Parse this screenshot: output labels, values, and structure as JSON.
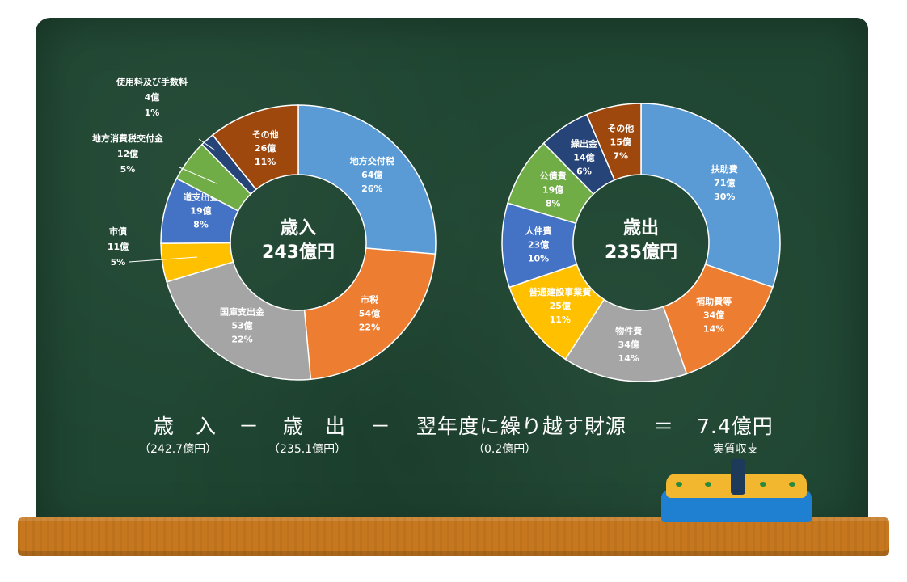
{
  "chart_data": [
    {
      "type": "pie",
      "center_label": [
        "歳入",
        "243億円"
      ],
      "slices": [
        {
          "name": "地方交付税",
          "value": 64,
          "value_label": "64億",
          "percent": "26%",
          "color": "#5b9bd5"
        },
        {
          "name": "市税",
          "value": 54,
          "value_label": "54億",
          "percent": "22%",
          "color": "#ed7d31"
        },
        {
          "name": "国庫支出金",
          "value": 53,
          "value_label": "53億",
          "percent": "22%",
          "color": "#a5a5a5"
        },
        {
          "name": "市債",
          "value": 11,
          "value_label": "11億",
          "percent": "5%",
          "color": "#ffc000"
        },
        {
          "name": "道支出金",
          "value": 19,
          "value_label": "19億",
          "percent": "8%",
          "color": "#4472c4"
        },
        {
          "name": "地方消費税交付金",
          "value": 12,
          "value_label": "12億",
          "percent": "5%",
          "color": "#70ad47"
        },
        {
          "name": "使用料及び手数料",
          "value": 4,
          "value_label": "4億",
          "percent": "1%",
          "color": "#264478"
        },
        {
          "name": "その他",
          "value": 26,
          "value_label": "26億",
          "percent": "11%",
          "color": "#9e480e"
        }
      ]
    },
    {
      "type": "pie",
      "center_label": [
        "歳出",
        "235億円"
      ],
      "slices": [
        {
          "name": "扶助費",
          "value": 71,
          "value_label": "71億",
          "percent": "30%",
          "color": "#5b9bd5"
        },
        {
          "name": "補助費等",
          "value": 34,
          "value_label": "34億",
          "percent": "14%",
          "color": "#ed7d31"
        },
        {
          "name": "物件費",
          "value": 34,
          "value_label": "34億",
          "percent": "14%",
          "color": "#a5a5a5"
        },
        {
          "name": "普通建設事業費",
          "value": 25,
          "value_label": "25億",
          "percent": "11%",
          "color": "#ffc000"
        },
        {
          "name": "人件費",
          "value": 23,
          "value_label": "23億",
          "percent": "10%",
          "color": "#4472c4"
        },
        {
          "name": "公債費",
          "value": 19,
          "value_label": "19億",
          "percent": "8%",
          "color": "#70ad47"
        },
        {
          "name": "繰出金",
          "value": 14,
          "value_label": "14億",
          "percent": "6%",
          "color": "#264478"
        },
        {
          "name": "その他",
          "value": 15,
          "value_label": "15億",
          "percent": "7%",
          "color": "#9e480e"
        }
      ]
    }
  ],
  "equation": {
    "revenue": "歳　入",
    "minus1": "－",
    "expenditure": "歳　出",
    "minus2": "－",
    "carryover": "翌年度に繰り越す財源",
    "equals": "＝",
    "result": "7.4億円",
    "revenue_value": "（242.7億円）",
    "expenditure_value": "（235.1億円）",
    "carryover_value": "（0.2億円）",
    "result_label": "実質収支"
  },
  "colors": {
    "board": "#1f4632",
    "ledge": "#c7781f",
    "text": "#ffffff"
  }
}
